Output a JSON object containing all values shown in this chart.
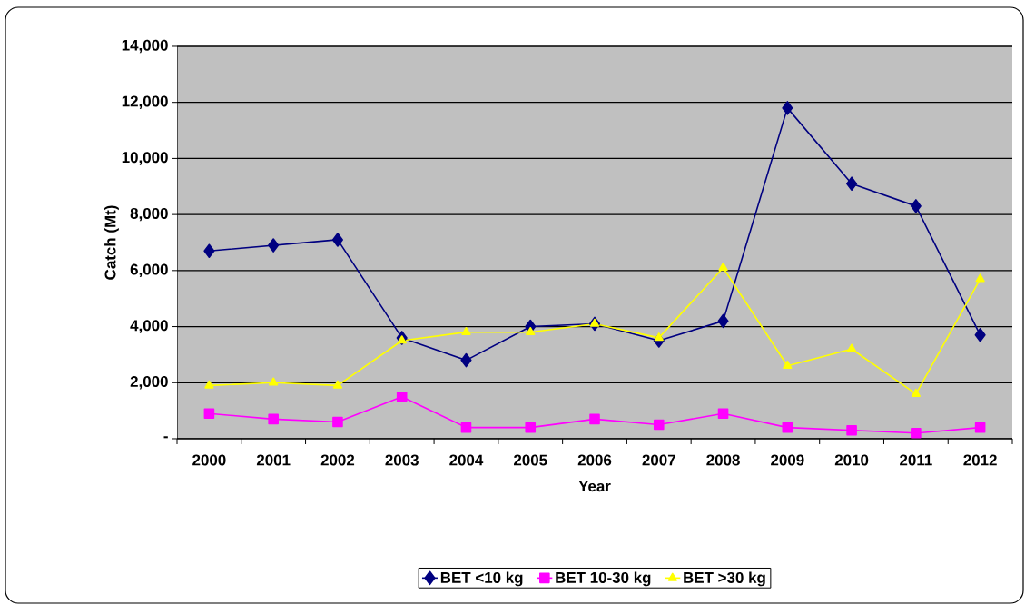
{
  "chart_data": {
    "type": "line",
    "xlabel": "Year",
    "ylabel": "Catch (Mt)",
    "categories": [
      "2000",
      "2001",
      "2002",
      "2003",
      "2004",
      "2005",
      "2006",
      "2007",
      "2008",
      "2009",
      "2010",
      "2011",
      "2012"
    ],
    "series": [
      {
        "name": "BET <10 kg",
        "color": "#000080",
        "marker": "diamond",
        "values": [
          6700,
          6900,
          7100,
          3600,
          2800,
          4000,
          4100,
          3500,
          4200,
          11800,
          9100,
          8300,
          3700
        ]
      },
      {
        "name": "BET 10-30 kg",
        "color": "#ff00ff",
        "marker": "square",
        "values": [
          900,
          700,
          600,
          1500,
          400,
          400,
          700,
          500,
          900,
          400,
          300,
          200,
          400
        ]
      },
      {
        "name": "BET >30 kg",
        "color": "#ffff00",
        "marker": "triangle",
        "values": [
          1900,
          2000,
          1900,
          3500,
          3800,
          3800,
          4100,
          3600,
          6100,
          2600,
          3200,
          1600,
          5700
        ]
      }
    ],
    "ylim": [
      0,
      14000
    ],
    "yticks": [
      {
        "value": 0,
        "label": "-"
      },
      {
        "value": 2000,
        "label": "2,000"
      },
      {
        "value": 4000,
        "label": "4,000"
      },
      {
        "value": 6000,
        "label": "6,000"
      },
      {
        "value": 8000,
        "label": "8,000"
      },
      {
        "value": 10000,
        "label": "10,000"
      },
      {
        "value": 12000,
        "label": "12,000"
      },
      {
        "value": 14000,
        "label": "14,000"
      }
    ],
    "grid": "y",
    "legend": "bottom",
    "line_style": "solid"
  }
}
